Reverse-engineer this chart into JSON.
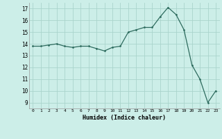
{
  "x": [
    0,
    1,
    2,
    3,
    4,
    5,
    6,
    7,
    8,
    9,
    10,
    11,
    12,
    13,
    14,
    15,
    16,
    17,
    18,
    19,
    20,
    21,
    22,
    23
  ],
  "y": [
    13.8,
    13.8,
    13.9,
    14.0,
    13.8,
    13.7,
    13.8,
    13.8,
    13.6,
    13.4,
    13.7,
    13.8,
    15.0,
    15.2,
    15.4,
    15.4,
    16.3,
    17.1,
    16.5,
    15.2,
    12.2,
    11.0,
    9.0,
    10.0
  ],
  "ylim": [
    8.5,
    17.5
  ],
  "xlim": [
    -0.5,
    23.5
  ],
  "yticks": [
    9,
    10,
    11,
    12,
    13,
    14,
    15,
    16,
    17
  ],
  "xticks": [
    0,
    1,
    2,
    3,
    4,
    5,
    6,
    7,
    8,
    9,
    10,
    11,
    12,
    13,
    14,
    15,
    16,
    17,
    18,
    19,
    20,
    21,
    22,
    23
  ],
  "xlabel": "Humidex (Indice chaleur)",
  "line_color": "#2d6b5e",
  "marker_color": "#2d6b5e",
  "bg_color": "#cceee8",
  "grid_color": "#aad4cc",
  "title": ""
}
